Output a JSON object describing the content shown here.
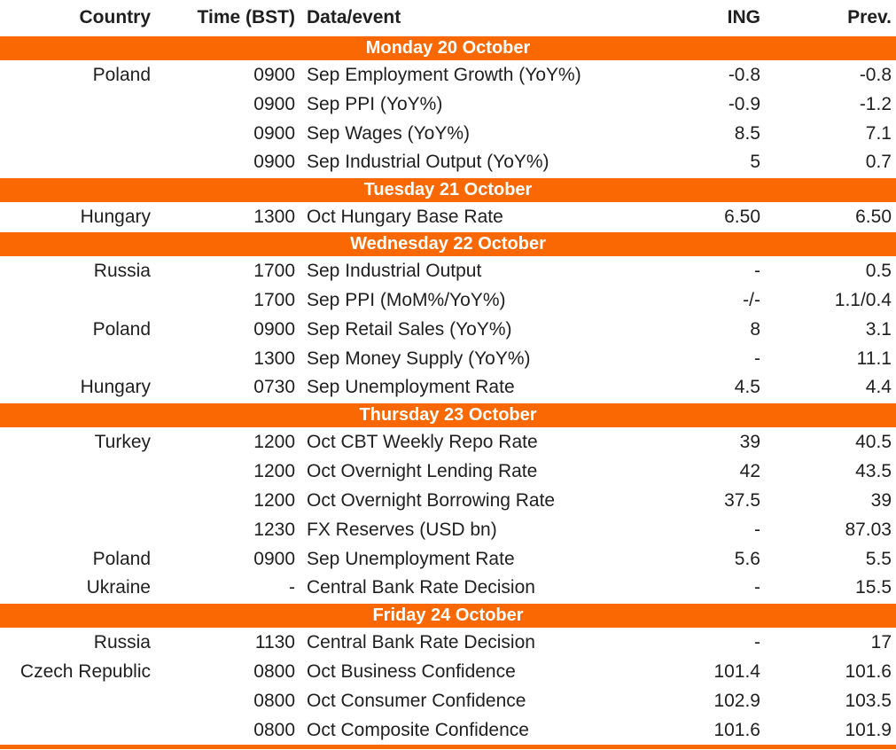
{
  "colors": {
    "accent_orange": "#F96802",
    "band_text": "#FFFFFF",
    "text": "#1F1F1F"
  },
  "table": {
    "columns": [
      "Country",
      "Time (BST)",
      "Data/event",
      "ING",
      "Prev."
    ],
    "sections": [
      {
        "day": "Monday 20 October",
        "rows": [
          {
            "country": "Poland",
            "time": "0900",
            "event": "Sep Employment Growth (YoY%)",
            "ing": "-0.8",
            "prev": "-0.8"
          },
          {
            "country": "",
            "time": "0900",
            "event": "Sep PPI (YoY%)",
            "ing": "-0.9",
            "prev": "-1.2"
          },
          {
            "country": "",
            "time": "0900",
            "event": "Sep Wages (YoY%)",
            "ing": "8.5",
            "prev": "7.1"
          },
          {
            "country": "",
            "time": "0900",
            "event": "Sep Industrial Output (YoY%)",
            "ing": "5",
            "prev": "0.7"
          }
        ]
      },
      {
        "day": "Tuesday 21 October",
        "rows": [
          {
            "country": "Hungary",
            "time": "1300",
            "event": "Oct Hungary Base Rate",
            "ing": "6.50",
            "prev": "6.50"
          }
        ]
      },
      {
        "day": "Wednesday 22 October",
        "rows": [
          {
            "country": "Russia",
            "time": "1700",
            "event": "Sep Industrial Output",
            "ing": "-",
            "prev": "0.5"
          },
          {
            "country": "",
            "time": "1700",
            "event": "Sep PPI (MoM%/YoY%)",
            "ing": "-/-",
            "prev": "1.1/0.4"
          },
          {
            "country": "Poland",
            "time": "0900",
            "event": "Sep Retail Sales (YoY%)",
            "ing": "8",
            "prev": "3.1"
          },
          {
            "country": "",
            "time": "1300",
            "event": "Sep Money Supply (YoY%)",
            "ing": "-",
            "prev": "11.1"
          },
          {
            "country": "Hungary",
            "time": "0730",
            "event": "Sep Unemployment Rate",
            "ing": "4.5",
            "prev": "4.4"
          }
        ]
      },
      {
        "day": "Thursday 23 October",
        "rows": [
          {
            "country": "Turkey",
            "time": "1200",
            "event": "Oct CBT Weekly Repo Rate",
            "ing": "39",
            "prev": "40.5"
          },
          {
            "country": "",
            "time": "1200",
            "event": "Oct Overnight Lending Rate",
            "ing": "42",
            "prev": "43.5"
          },
          {
            "country": "",
            "time": "1200",
            "event": "Oct Overnight Borrowing Rate",
            "ing": "37.5",
            "prev": "39"
          },
          {
            "country": "",
            "time": "1230",
            "event": "FX Reserves (USD bn)",
            "ing": "-",
            "prev": "87.03"
          },
          {
            "country": "Poland",
            "time": "0900",
            "event": "Sep Unemployment Rate",
            "ing": "5.6",
            "prev": "5.5"
          },
          {
            "country": "Ukraine",
            "time": "-",
            "event": "Central Bank Rate Decision",
            "ing": "-",
            "prev": "15.5"
          }
        ]
      },
      {
        "day": "Friday 24 October",
        "rows": [
          {
            "country": "Russia",
            "time": "1130",
            "event": "Central Bank Rate Decision",
            "ing": "-",
            "prev": "17"
          },
          {
            "country": "Czech Republic",
            "time": "0800",
            "event": "Oct Business Confidence",
            "ing": "101.4",
            "prev": "101.6"
          },
          {
            "country": "",
            "time": "0800",
            "event": "Oct Consumer Confidence",
            "ing": "102.9",
            "prev": "103.5"
          },
          {
            "country": "",
            "time": "0800",
            "event": "Oct Composite Confidence",
            "ing": "101.6",
            "prev": "101.9"
          }
        ]
      }
    ]
  }
}
